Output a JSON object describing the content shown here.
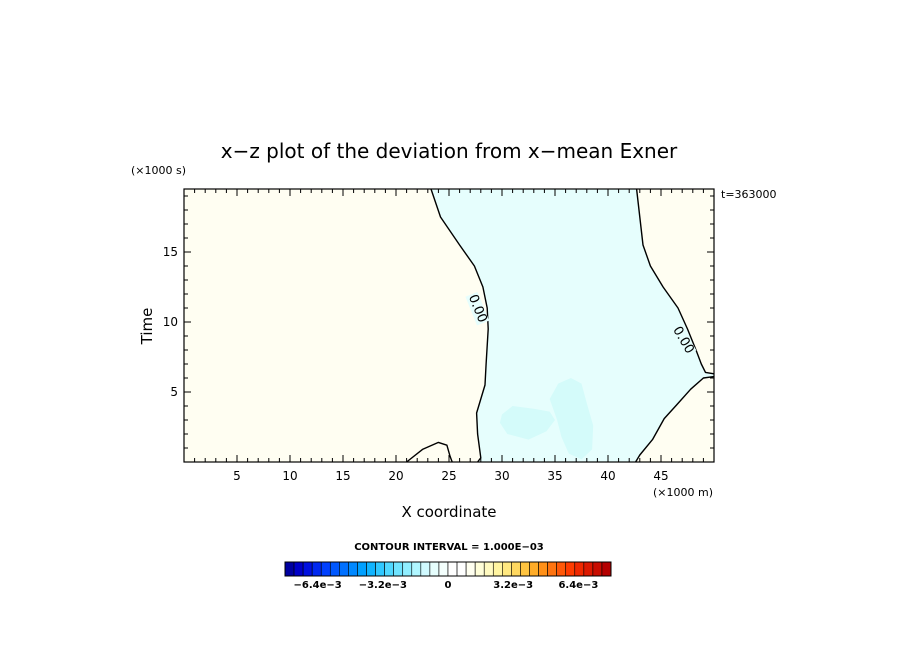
{
  "chart_data": {
    "type": "contour",
    "title": "x−z plot of the deviation from x−mean Exner",
    "xlabel": "X coordinate",
    "ylabel": "Time",
    "x_unit_label": "(×1000 m)",
    "y_unit_label": "(×1000 s)",
    "time_label": "t=363000",
    "xlim": [
      0,
      50
    ],
    "ylim": [
      0,
      19.5
    ],
    "x_ticks": [
      5,
      10,
      15,
      20,
      25,
      30,
      35,
      40,
      45
    ],
    "y_ticks": [
      5,
      10,
      15
    ],
    "contour_labels": [
      "0.00",
      "0.00"
    ],
    "zero_contours": [
      {
        "name": "left boundary",
        "points": [
          [
            23.3,
            19.5
          ],
          [
            24.2,
            17.5
          ],
          [
            26.0,
            15.5
          ],
          [
            27.4,
            14.0
          ],
          [
            28.2,
            12.5
          ],
          [
            28.6,
            11.0
          ],
          [
            28.7,
            9.5
          ],
          [
            28.5,
            7.0
          ],
          [
            28.4,
            5.5
          ],
          [
            28.0,
            4.5
          ],
          [
            27.6,
            3.5
          ],
          [
            27.7,
            2.0
          ],
          [
            28.0,
            0.3
          ],
          [
            27.7,
            0
          ]
        ]
      },
      {
        "name": "right boundary",
        "points": [
          [
            42.7,
            19.5
          ],
          [
            43.0,
            17.5
          ],
          [
            43.3,
            15.5
          ],
          [
            44.0,
            14.0
          ],
          [
            45.2,
            12.5
          ],
          [
            46.6,
            11.0
          ],
          [
            47.5,
            9.5
          ],
          [
            48.3,
            8.0
          ],
          [
            48.8,
            7.0
          ],
          [
            49.2,
            6.4
          ],
          [
            50,
            6.3
          ]
        ]
      },
      {
        "name": "right lower boundary",
        "points": [
          [
            50,
            6.1
          ],
          [
            49.0,
            6.0
          ],
          [
            47.8,
            5.2
          ],
          [
            46.5,
            4.1
          ],
          [
            45.3,
            3.1
          ],
          [
            44.2,
            1.6
          ],
          [
            43.0,
            0.5
          ],
          [
            42.6,
            0
          ]
        ]
      },
      {
        "name": "small bulge",
        "points": [
          [
            21.0,
            0
          ],
          [
            22.5,
            0.9
          ],
          [
            24.0,
            1.4
          ],
          [
            24.8,
            1.2
          ],
          [
            25.1,
            0.4
          ],
          [
            25.3,
            0
          ]
        ]
      }
    ],
    "negative_region_fill": "#e6fefd",
    "positive_region_fill": "#fffef2",
    "stronger_negative_patch_fill": "#d4fbfa",
    "colorbar": {
      "title": "CONTOUR INTERVAL = 1.000E−03",
      "tick_labels": [
        "−6.4e−3",
        "−3.2e−3",
        "0",
        "3.2e−3",
        "6.4e−3"
      ],
      "tick_values": [
        -0.0064,
        -0.0032,
        0,
        0.0032,
        0.0064
      ],
      "vmin": -0.008,
      "vmax": 0.008,
      "colors": [
        "#0000a0",
        "#0000c8",
        "#0010e0",
        "#0028f0",
        "#0040ff",
        "#0058ff",
        "#0070ff",
        "#0088ff",
        "#00a0ff",
        "#10b4ff",
        "#30c8ff",
        "#50d8ff",
        "#70e4ff",
        "#90eeff",
        "#b0f6ff",
        "#d0faff",
        "#e6fefd",
        "#f4fffd",
        "#ffffff",
        "#ffffff",
        "#fffff0",
        "#fffed8",
        "#fffac0",
        "#fff4a0",
        "#ffe880",
        "#ffd860",
        "#ffc440",
        "#ffac28",
        "#ff9018",
        "#ff7410",
        "#ff5808",
        "#ff3c00",
        "#f02800",
        "#dc1800",
        "#c80c00",
        "#b40000"
      ]
    }
  }
}
